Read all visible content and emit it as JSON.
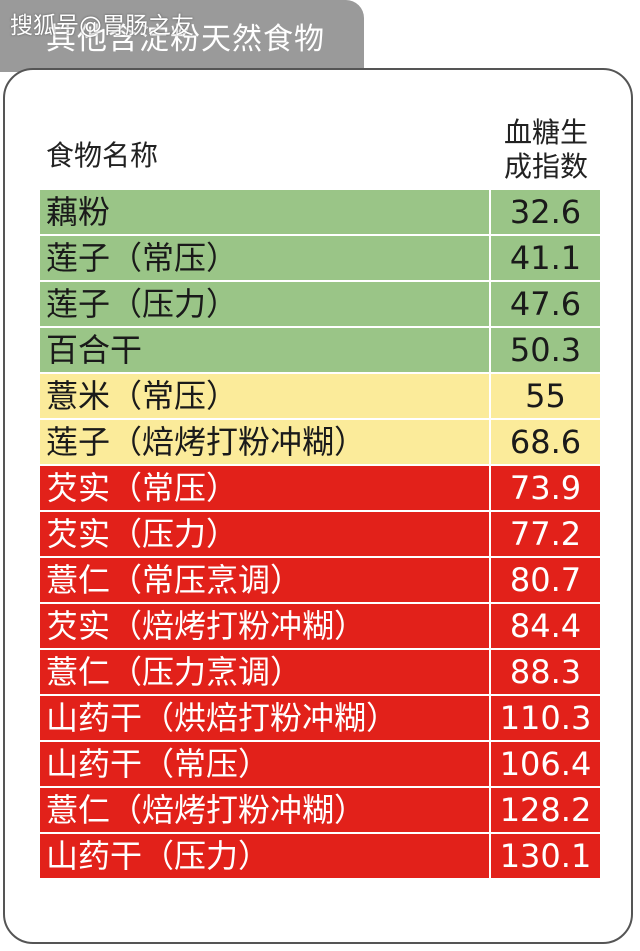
{
  "tab": {
    "title": "其他含淀粉天然食物"
  },
  "watermark": "搜狐号@胃肠之友",
  "table": {
    "header_name": "食物名称",
    "header_gi_line1": "血糖生",
    "header_gi_line2": "成指数",
    "colors": {
      "low": "#9ac587",
      "medium": "#fbeb9a",
      "high": "#e2211a"
    },
    "rows": [
      {
        "name": "藕粉",
        "value": "32.6",
        "level": "low"
      },
      {
        "name": "莲子（常压）",
        "value": "41.1",
        "level": "low"
      },
      {
        "name": "莲子（压力）",
        "value": "47.6",
        "level": "low"
      },
      {
        "name": "百合干",
        "value": "50.3",
        "level": "low"
      },
      {
        "name": "薏米（常压）",
        "value": "55",
        "level": "medium"
      },
      {
        "name": "莲子（焙烤打粉冲糊）",
        "value": "68.6",
        "level": "medium"
      },
      {
        "name": "芡实（常压）",
        "value": "73.9",
        "level": "high"
      },
      {
        "name": "芡实（压力）",
        "value": "77.2",
        "level": "high"
      },
      {
        "name": "薏仁（常压烹调）",
        "value": "80.7",
        "level": "high"
      },
      {
        "name": "芡实（焙烤打粉冲糊）",
        "value": "84.4",
        "level": "high"
      },
      {
        "name": "薏仁（压力烹调）",
        "value": "88.3",
        "level": "high"
      },
      {
        "name": "山药干（烘焙打粉冲糊）",
        "value": "110.3",
        "level": "high"
      },
      {
        "name": "山药干（常压）",
        "value": "106.4",
        "level": "high"
      },
      {
        "name": "薏仁（焙烤打粉冲糊）",
        "value": "128.2",
        "level": "high"
      },
      {
        "name": "山药干（压力）",
        "value": "130.1",
        "level": "high"
      }
    ]
  }
}
